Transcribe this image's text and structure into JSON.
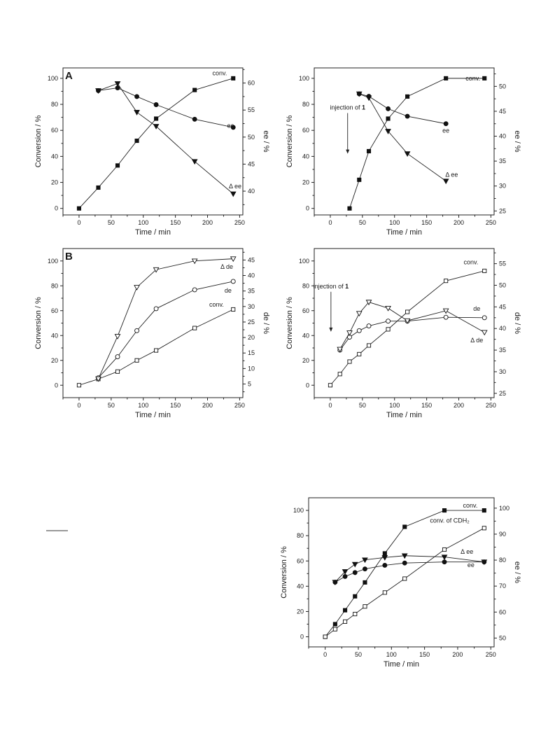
{
  "chart_data": [
    {
      "type": "line",
      "panel_label": "A",
      "xlabel": "Time / min",
      "ylabel": "Conversion / %",
      "y2label": "ee / %",
      "xlim": [
        -25,
        255
      ],
      "ylim": [
        -5,
        108
      ],
      "y2lim": [
        35.6,
        62.8
      ],
      "xticks": [
        "0",
        "50",
        "100",
        "150",
        "200",
        "250"
      ],
      "yticks": [
        "0",
        "20",
        "40",
        "60",
        "80",
        "100"
      ],
      "y2ticks": [
        "40",
        "45",
        "50",
        "55",
        "60"
      ],
      "series": [
        {
          "name": "conv.",
          "axis": "left",
          "marker": "square",
          "filled": true,
          "x": [
            0,
            30,
            60,
            90,
            120,
            180,
            240
          ],
          "y": [
            0,
            16,
            33,
            52,
            69,
            91,
            100
          ]
        },
        {
          "name": "ee",
          "axis": "right",
          "marker": "circle",
          "filled": true,
          "x": [
            30,
            60,
            90,
            120,
            180,
            240
          ],
          "y": [
            58.6,
            59.1,
            57.5,
            56.0,
            53.3,
            51.8
          ]
        },
        {
          "name": "Δ ee",
          "axis": "right",
          "marker": "triangle-down",
          "filled": true,
          "x": [
            30,
            60,
            90,
            120,
            180,
            240
          ],
          "y": [
            58.6,
            59.9,
            54.6,
            52.0,
            45.5,
            39.5
          ]
        }
      ],
      "labels": [
        {
          "text": "conv.",
          "x": 219,
          "y": 104,
          "axis": "left"
        },
        {
          "text": "ee",
          "x": 236,
          "y": 52.1,
          "axis": "right"
        },
        {
          "text": "Δ ee",
          "x": 243,
          "y": 40.9,
          "axis": "right"
        }
      ]
    },
    {
      "type": "line",
      "xlabel": "Time / min",
      "ylabel": "Conversion / %",
      "y2label": "ee / %",
      "xlim": [
        -25,
        255
      ],
      "ylim": [
        -5,
        108
      ],
      "y2lim": [
        24.2,
        53.7
      ],
      "xticks": [
        "0",
        "50",
        "100",
        "150",
        "200",
        "250"
      ],
      "yticks": [
        "0",
        "20",
        "40",
        "60",
        "80",
        "100"
      ],
      "y2ticks": [
        "25",
        "30",
        "35",
        "40",
        "45",
        "50"
      ],
      "series": [
        {
          "name": "conv.",
          "axis": "left",
          "marker": "square",
          "filled": true,
          "x": [
            30,
            45,
            60,
            90,
            120,
            180,
            240
          ],
          "y": [
            0,
            22,
            44,
            69,
            86,
            100,
            100
          ]
        },
        {
          "name": "ee",
          "axis": "right",
          "marker": "circle",
          "filled": true,
          "x": [
            45,
            60,
            90,
            120,
            180
          ],
          "y": [
            48.5,
            48.0,
            45.5,
            44.0,
            42.5
          ]
        },
        {
          "name": "Δ ee",
          "axis": "right",
          "marker": "triangle-down",
          "filled": true,
          "x": [
            45,
            60,
            90,
            120,
            180
          ],
          "y": [
            48.5,
            47.7,
            41.0,
            36.5,
            31.0
          ]
        }
      ],
      "labels": [
        {
          "text": "conv.",
          "x": 222,
          "y": 100,
          "axis": "left"
        },
        {
          "text": "ee",
          "x": 180,
          "y": 41.1,
          "axis": "right"
        },
        {
          "text": "Δ ee",
          "x": 189,
          "y": 32.3,
          "axis": "right"
        }
      ],
      "annotation": {
        "text": "injection of ",
        "bold": "1",
        "x": 27,
        "y": 76,
        "arrow_to_y": 42
      }
    },
    {
      "type": "line",
      "panel_label": "B",
      "xlabel": "Time / min",
      "ylabel": "Conversion / %",
      "y2label": "de / %",
      "xlim": [
        -25,
        255
      ],
      "ylim": [
        -10,
        110
      ],
      "y2lim": [
        0.6,
        48.7
      ],
      "xticks": [
        "0",
        "50",
        "100",
        "150",
        "200",
        "250"
      ],
      "yticks": [
        "0",
        "20",
        "40",
        "60",
        "80",
        "100"
      ],
      "y2ticks": [
        "5",
        "10",
        "15",
        "20",
        "25",
        "30",
        "35",
        "40",
        "45"
      ],
      "series": [
        {
          "name": "conv.",
          "axis": "left",
          "marker": "square",
          "filled": false,
          "x": [
            0,
            30,
            60,
            90,
            120,
            180,
            240
          ],
          "y": [
            0,
            5,
            11,
            20,
            28,
            46,
            61
          ]
        },
        {
          "name": "de",
          "axis": "right",
          "marker": "circle",
          "filled": false,
          "x": [
            30,
            60,
            90,
            120,
            180,
            240
          ],
          "y": [
            7.0,
            13.8,
            22.2,
            29.3,
            35.4,
            38.1
          ]
        },
        {
          "name": "Δ de",
          "axis": "right",
          "marker": "triangle-down",
          "filled": false,
          "x": [
            30,
            60,
            90,
            120,
            180,
            240
          ],
          "y": [
            6.7,
            20.4,
            36.2,
            41.9,
            44.7,
            45.4
          ]
        }
      ],
      "labels": [
        {
          "text": "Δ de",
          "x": 230,
          "y": 42.8,
          "axis": "right"
        },
        {
          "text": "de",
          "x": 232,
          "y": 35.1,
          "axis": "right"
        },
        {
          "text": "conv.",
          "x": 214,
          "y": 65,
          "axis": "left"
        }
      ]
    },
    {
      "type": "line",
      "xlabel": "Time / min",
      "ylabel": "Conversion / %",
      "y2label": "de / %",
      "xlim": [
        -25,
        255
      ],
      "ylim": [
        -10,
        110
      ],
      "y2lim": [
        24.0,
        58.5
      ],
      "xticks": [
        "0",
        "50",
        "100",
        "150",
        "200",
        "250"
      ],
      "yticks": [
        "0",
        "20",
        "40",
        "60",
        "80",
        "100"
      ],
      "y2ticks": [
        "25",
        "30",
        "35",
        "40",
        "45",
        "50",
        "55"
      ],
      "series": [
        {
          "name": "conv.",
          "axis": "left",
          "marker": "square",
          "filled": false,
          "x": [
            0,
            15,
            30,
            45,
            60,
            90,
            120,
            180,
            240
          ],
          "y": [
            0,
            9,
            19,
            25,
            32,
            45,
            59,
            84,
            92
          ]
        },
        {
          "name": "de",
          "axis": "right",
          "marker": "circle",
          "filled": false,
          "x": [
            15,
            30,
            45,
            60,
            90,
            120,
            180,
            240
          ],
          "y": [
            35.0,
            38.0,
            39.5,
            40.6,
            41.7,
            41.7,
            42.6,
            42.5
          ]
        },
        {
          "name": "Δ de",
          "axis": "right",
          "marker": "triangle-down",
          "filled": false,
          "x": [
            15,
            30,
            45,
            60,
            90,
            120,
            180,
            240
          ],
          "y": [
            35.2,
            39.0,
            43.5,
            46.1,
            44.7,
            41.8,
            44.1,
            39.1
          ]
        }
      ],
      "labels": [
        {
          "text": "conv.",
          "x": 219,
          "y": 99,
          "axis": "left"
        },
        {
          "text": "de",
          "x": 228,
          "y": 44.6,
          "axis": "right"
        },
        {
          "text": "Δ de",
          "x": 228,
          "y": 37.3,
          "axis": "right"
        }
      ],
      "annotation": {
        "text": "injection of ",
        "bold": "1",
        "x": 1,
        "y": 78,
        "arrow_to_y": 43
      }
    },
    {
      "type": "line",
      "xlabel": "Time / min",
      "ylabel": "Conversion / %",
      "y2label": "ee / %",
      "xlim": [
        -25,
        255
      ],
      "ylim": [
        -8,
        110
      ],
      "y2lim": [
        46.6,
        104.0
      ],
      "xticks": [
        "0",
        "50",
        "100",
        "150",
        "200",
        "250"
      ],
      "yticks": [
        "0",
        "20",
        "40",
        "60",
        "80",
        "100"
      ],
      "y2ticks": [
        "50",
        "60",
        "70",
        "80",
        "90",
        "100"
      ],
      "series": [
        {
          "name": "conv.",
          "axis": "left",
          "marker": "square",
          "filled": true,
          "x": [
            0,
            15,
            30,
            45,
            60,
            90,
            120,
            180,
            240
          ],
          "y": [
            0,
            10,
            21,
            32,
            43,
            66,
            87,
            100,
            100
          ]
        },
        {
          "name": "conv. of CDH₂",
          "axis": "left",
          "marker": "square",
          "filled": false,
          "x": [
            0,
            15,
            30,
            45,
            60,
            90,
            120,
            180,
            240
          ],
          "y": [
            0,
            6,
            12,
            18,
            24,
            35,
            46,
            69,
            86
          ]
        },
        {
          "name": "ee",
          "axis": "right",
          "marker": "circle",
          "filled": true,
          "x": [
            15,
            30,
            45,
            60,
            90,
            120,
            180,
            240
          ],
          "y": [
            71.5,
            73.7,
            75.2,
            76.6,
            78.0,
            78.9,
            79.3,
            79.3
          ]
        },
        {
          "name": "Δ ee",
          "axis": "right",
          "marker": "triangle-down",
          "filled": true,
          "x": [
            15,
            30,
            45,
            60,
            90,
            120,
            180,
            240
          ],
          "y": [
            71.5,
            75.6,
            78.4,
            80.1,
            81.0,
            81.7,
            81.2,
            79.3
          ]
        }
      ],
      "labels": [
        {
          "text": "conv.",
          "x": 219,
          "y": 104,
          "axis": "left"
        },
        {
          "text": "conv. of CDH₂",
          "x": 188,
          "y": 92,
          "axis": "left"
        },
        {
          "text": "Δ ee",
          "x": 214,
          "y": 83.2,
          "axis": "right"
        },
        {
          "text": "ee",
          "x": 220,
          "y": 78.1,
          "axis": "right"
        }
      ]
    }
  ]
}
